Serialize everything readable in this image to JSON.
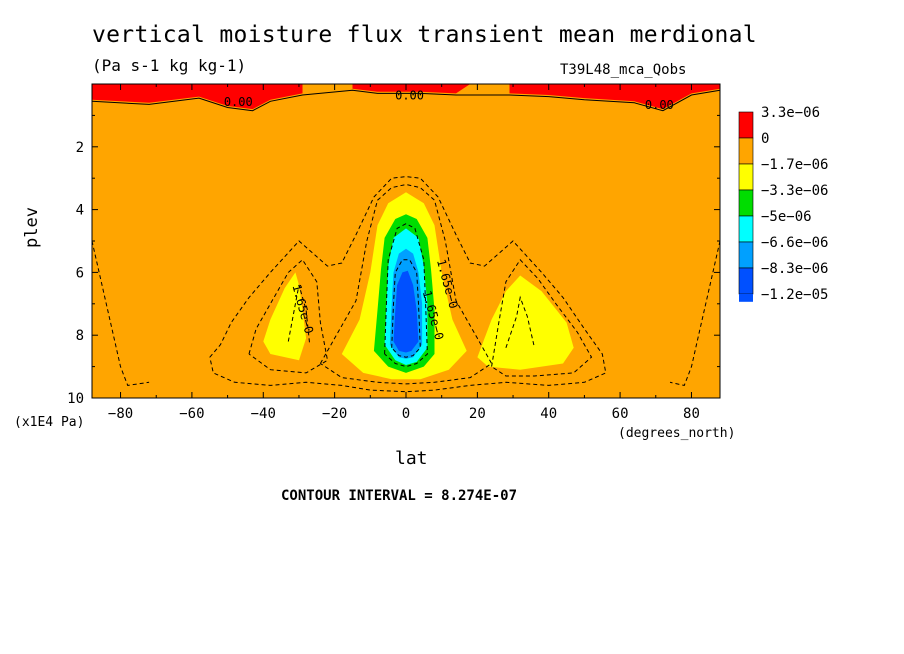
{
  "chart_data": {
    "type": "contour",
    "title": "vertical moisture flux transient mean merdional",
    "units": "(Pa s-1 kg kg-1)",
    "source_label": "T39L48_mca_Qobs",
    "xlabel": "lat",
    "xunits": "(degrees_north)",
    "ylabel": "plev",
    "ymultiplier": "(x1E4 Pa)",
    "xlim": [
      -88,
      88
    ],
    "ylim": [
      10,
      0
    ],
    "x_ticks": [
      -80,
      -60,
      -40,
      -20,
      0,
      20,
      40,
      60,
      80
    ],
    "x_tick_labels": [
      "−80",
      "−60",
      "−40",
      "−20",
      "0",
      "20",
      "40",
      "60",
      "80"
    ],
    "y_ticks": [
      2,
      4,
      6,
      8,
      10
    ],
    "y_tick_labels": [
      "2",
      "4",
      "6",
      "8",
      "10"
    ],
    "contour_interval": "CONTOUR INTERVAL = 8.274E-07",
    "legend_placement": "right",
    "legend": [
      {
        "label": "3.3e−06",
        "color": "#ff0000"
      },
      {
        "label": "0",
        "color": "#ffa500"
      },
      {
        "label": "−1.7e−06",
        "color": "#ffff00"
      },
      {
        "label": "−3.3e−06",
        "color": "#00dd00"
      },
      {
        "label": "−5e−06",
        "color": "#00ffff"
      },
      {
        "label": "−6.6e−06",
        "color": "#00a0ff"
      },
      {
        "label": "−8.3e−06",
        "color": "#0050ff"
      },
      {
        "label": "−1.2e−05",
        "color": ""
      }
    ],
    "contour_labels": [
      {
        "text": "0.00",
        "x": -47,
        "y": 0.7
      },
      {
        "text": "0.00",
        "x": 1,
        "y": 0.5
      },
      {
        "text": "0.00",
        "x": 71,
        "y": 0.8
      },
      {
        "text": "1.65e−0",
        "x": 10.5,
        "y": 6.4
      },
      {
        "text": "1.65e−0",
        "x": 6.5,
        "y": 7.4
      },
      {
        "text": "1.65e−0",
        "x": -30,
        "y": 7.2
      }
    ],
    "regions": [
      {
        "name": "positive-band-top-left",
        "color": "#ff0000",
        "value": 3.3e-06,
        "points": [
          [
            -88,
            0
          ],
          [
            -29,
            0
          ],
          [
            -29,
            0.3
          ],
          [
            -38,
            0.5
          ],
          [
            -43,
            0.8
          ],
          [
            -50,
            0.7
          ],
          [
            -58,
            0.4
          ],
          [
            -72,
            0.6
          ],
          [
            -88,
            0.5
          ]
        ]
      },
      {
        "name": "positive-band-top-center",
        "color": "#ff0000",
        "value": 3.3e-06,
        "points": [
          [
            -15,
            0
          ],
          [
            18,
            0
          ],
          [
            14,
            0.3
          ],
          [
            4,
            0.25
          ],
          [
            -8,
            0.25
          ],
          [
            -15,
            0.15
          ]
        ]
      },
      {
        "name": "positive-band-top-right",
        "color": "#ff0000",
        "value": 3.3e-06,
        "points": [
          [
            29,
            0
          ],
          [
            88,
            0
          ],
          [
            88,
            0.15
          ],
          [
            80,
            0.3
          ],
          [
            72,
            0.8
          ],
          [
            64,
            0.55
          ],
          [
            50,
            0.45
          ],
          [
            40,
            0.35
          ],
          [
            29,
            0.3
          ]
        ]
      },
      {
        "name": "yellow-region-south",
        "color": "#ffff00",
        "value": -1.7e-06,
        "points": [
          [
            -40,
            8.2
          ],
          [
            -38,
            7.5
          ],
          [
            -34,
            6.5
          ],
          [
            -31,
            6.0
          ],
          [
            -30,
            6.4
          ],
          [
            -29,
            7.2
          ],
          [
            -28,
            8.1
          ],
          [
            -30,
            8.8
          ],
          [
            -38,
            8.6
          ]
        ]
      },
      {
        "name": "yellow-region-north",
        "color": "#ffff00",
        "value": -1.7e-06,
        "points": [
          [
            20,
            8.7
          ],
          [
            24,
            7.5
          ],
          [
            28,
            6.6
          ],
          [
            32,
            6.1
          ],
          [
            38,
            6.6
          ],
          [
            45,
            7.6
          ],
          [
            47,
            8.4
          ],
          [
            44,
            8.9
          ],
          [
            32,
            9.1
          ],
          [
            23,
            9.0
          ]
        ]
      },
      {
        "name": "yellow-region-equator",
        "color": "#ffff00",
        "value": -1.7e-06,
        "points": [
          [
            -18,
            8.6
          ],
          [
            -13,
            7.5
          ],
          [
            -10,
            6.0
          ],
          [
            -8,
            4.5
          ],
          [
            -5,
            3.8
          ],
          [
            0,
            3.45
          ],
          [
            5,
            3.8
          ],
          [
            8,
            4.5
          ],
          [
            10,
            6.0
          ],
          [
            13,
            7.5
          ],
          [
            17,
            8.5
          ],
          [
            12,
            9.1
          ],
          [
            4,
            9.4
          ],
          [
            -4,
            9.4
          ],
          [
            -12,
            9.2
          ]
        ]
      },
      {
        "name": "green-region-equator",
        "color": "#00dd00",
        "value": -3.3e-06,
        "points": [
          [
            -9,
            8.5
          ],
          [
            -8,
            7.2
          ],
          [
            -7,
            5.9
          ],
          [
            -6,
            4.9
          ],
          [
            -3,
            4.3
          ],
          [
            0,
            4.15
          ],
          [
            3,
            4.3
          ],
          [
            6,
            4.9
          ],
          [
            7,
            5.9
          ],
          [
            8,
            7.2
          ],
          [
            8,
            8.6
          ],
          [
            5,
            9.0
          ],
          [
            0,
            9.2
          ],
          [
            -5,
            9.0
          ]
        ]
      },
      {
        "name": "cyan-region-equator",
        "color": "#00ffff",
        "value": -5e-06,
        "points": [
          [
            -6,
            8.3
          ],
          [
            -5.5,
            7.0
          ],
          [
            -5,
            5.8
          ],
          [
            -3.5,
            4.9
          ],
          [
            0,
            4.6
          ],
          [
            3.5,
            4.9
          ],
          [
            5,
            5.8
          ],
          [
            6,
            7.0
          ],
          [
            6,
            8.4
          ],
          [
            3,
            8.85
          ],
          [
            0,
            8.95
          ],
          [
            -3,
            8.8
          ]
        ]
      },
      {
        "name": "lightblue-region-equator",
        "color": "#00a0ff",
        "value": -6.6e-06,
        "points": [
          [
            -4.5,
            8.3
          ],
          [
            -4,
            7.0
          ],
          [
            -3.5,
            6.0
          ],
          [
            -2,
            5.4
          ],
          [
            0,
            5.25
          ],
          [
            2,
            5.4
          ],
          [
            3.5,
            6.0
          ],
          [
            4.5,
            7.0
          ],
          [
            4.5,
            8.3
          ],
          [
            2,
            8.7
          ],
          [
            0,
            8.75
          ],
          [
            -2,
            8.7
          ]
        ]
      },
      {
        "name": "blue-region-equator",
        "color": "#0050ff",
        "value": -8.3e-06,
        "points": [
          [
            -3.5,
            8.2
          ],
          [
            -3,
            7.2
          ],
          [
            -2.5,
            6.4
          ],
          [
            -1,
            6.0
          ],
          [
            0.5,
            5.95
          ],
          [
            2,
            6.4
          ],
          [
            3,
            7.2
          ],
          [
            3.5,
            8.2
          ],
          [
            1.5,
            8.5
          ],
          [
            0,
            8.55
          ],
          [
            -2,
            8.5
          ]
        ]
      }
    ],
    "contour_lines": [
      {
        "style": "solid",
        "points": [
          [
            -88,
            0.55
          ],
          [
            -72,
            0.65
          ],
          [
            -58,
            0.45
          ],
          [
            -50,
            0.75
          ],
          [
            -43,
            0.85
          ],
          [
            -38,
            0.55
          ],
          [
            -29,
            0.35
          ],
          [
            -15,
            0.2
          ],
          [
            -8,
            0.3
          ],
          [
            4,
            0.3
          ],
          [
            14,
            0.35
          ],
          [
            29,
            0.35
          ],
          [
            40,
            0.4
          ],
          [
            50,
            0.5
          ],
          [
            64,
            0.6
          ],
          [
            72,
            0.85
          ],
          [
            80,
            0.35
          ],
          [
            88,
            0.2
          ]
        ]
      },
      {
        "style": "dashed",
        "points": [
          [
            -88,
            5.0
          ],
          [
            -82,
            8.0
          ],
          [
            -80,
            9.0
          ],
          [
            -78,
            9.6
          ],
          [
            -72,
            9.5
          ]
        ]
      },
      {
        "style": "dashed",
        "points": [
          [
            88,
            5.0
          ],
          [
            82,
            8.0
          ],
          [
            80,
            9.0
          ],
          [
            78,
            9.6
          ],
          [
            74,
            9.5
          ]
        ]
      },
      {
        "style": "dashed",
        "points": [
          [
            -55,
            8.7
          ],
          [
            -52,
            8.3
          ],
          [
            -49,
            7.6
          ],
          [
            -44,
            6.8
          ],
          [
            -38,
            6.0
          ],
          [
            -30,
            5.0
          ],
          [
            -22,
            5.8
          ],
          [
            -18,
            5.7
          ],
          [
            -14,
            4.8
          ],
          [
            -9,
            3.6
          ],
          [
            -4,
            3.0
          ],
          [
            0,
            2.95
          ],
          [
            4,
            3.0
          ],
          [
            9,
            3.6
          ],
          [
            14,
            4.8
          ],
          [
            18,
            5.7
          ],
          [
            22,
            5.8
          ],
          [
            30,
            5.0
          ],
          [
            38,
            6.0
          ],
          [
            44,
            6.8
          ],
          [
            50,
            7.8
          ],
          [
            55,
            8.6
          ],
          [
            56,
            9.2
          ],
          [
            50,
            9.5
          ],
          [
            40,
            9.6
          ],
          [
            28,
            9.5
          ],
          [
            18,
            9.6
          ],
          [
            8,
            9.75
          ],
          [
            0,
            9.8
          ],
          [
            -10,
            9.75
          ],
          [
            -18,
            9.6
          ],
          [
            -28,
            9.5
          ],
          [
            -38,
            9.6
          ],
          [
            -48,
            9.5
          ],
          [
            -54,
            9.2
          ],
          [
            -55,
            8.7
          ]
        ]
      },
      {
        "style": "dashed",
        "points": [
          [
            -44,
            8.6
          ],
          [
            -42,
            7.8
          ],
          [
            -38,
            7.0
          ],
          [
            -33,
            6.0
          ],
          [
            -29,
            5.6
          ],
          [
            -25,
            6.3
          ],
          [
            -24,
            7.6
          ],
          [
            -22,
            8.8
          ],
          [
            -28,
            9.2
          ],
          [
            -38,
            9.1
          ],
          [
            -44,
            8.6
          ]
        ]
      },
      {
        "style": "dashed",
        "points": [
          [
            -24,
            8.9
          ],
          [
            -20,
            8.1
          ],
          [
            -14,
            6.9
          ],
          [
            -11,
            5.0
          ],
          [
            -8,
            3.7
          ],
          [
            -4,
            3.3
          ],
          [
            0,
            3.2
          ],
          [
            4,
            3.3
          ],
          [
            8,
            3.7
          ],
          [
            11,
            5.0
          ],
          [
            14,
            6.9
          ],
          [
            20,
            8.1
          ],
          [
            24,
            8.9
          ],
          [
            18,
            9.35
          ],
          [
            8,
            9.5
          ],
          [
            0,
            9.55
          ],
          [
            -8,
            9.5
          ],
          [
            -18,
            9.35
          ],
          [
            -24,
            8.9
          ]
        ]
      },
      {
        "style": "dashed",
        "points": [
          [
            24,
            9.0
          ],
          [
            26,
            7.6
          ],
          [
            28,
            6.3
          ],
          [
            32,
            5.6
          ],
          [
            37,
            6.2
          ],
          [
            42,
            7.0
          ],
          [
            48,
            7.9
          ],
          [
            52,
            8.7
          ],
          [
            47,
            9.2
          ],
          [
            36,
            9.3
          ],
          [
            28,
            9.3
          ],
          [
            24,
            9.0
          ]
        ]
      },
      {
        "style": "dashed",
        "points": [
          [
            -33,
            8.2
          ],
          [
            -31,
            7.0
          ],
          [
            -30,
            6.4
          ],
          [
            -28,
            7.2
          ],
          [
            -27,
            8.3
          ]
        ]
      },
      {
        "style": "dashed",
        "points": [
          [
            28,
            8.4
          ],
          [
            31,
            7.4
          ],
          [
            32,
            6.8
          ],
          [
            34,
            7.4
          ],
          [
            36,
            8.4
          ]
        ]
      },
      {
        "style": "dashed",
        "points": [
          [
            -6,
            8.6
          ],
          [
            -5.5,
            7.0
          ],
          [
            -5,
            5.6
          ],
          [
            -2.5,
            4.6
          ],
          [
            0,
            4.45
          ],
          [
            2.5,
            4.6
          ],
          [
            5,
            5.6
          ],
          [
            5.5,
            7.0
          ],
          [
            6,
            8.6
          ],
          [
            3,
            8.9
          ],
          [
            0,
            9.0
          ],
          [
            -3,
            8.9
          ],
          [
            -6,
            8.6
          ]
        ]
      },
      {
        "style": "dashed",
        "points": [
          [
            -4,
            8.4
          ],
          [
            -3.5,
            7.0
          ],
          [
            -3,
            6.0
          ],
          [
            -1,
            5.6
          ],
          [
            1,
            5.6
          ],
          [
            3,
            6.0
          ],
          [
            3.5,
            7.0
          ],
          [
            4,
            8.4
          ],
          [
            2,
            8.65
          ],
          [
            0,
            8.7
          ],
          [
            -2,
            8.65
          ],
          [
            -4,
            8.4
          ]
        ]
      }
    ]
  },
  "colors": {
    "frame": "#000000",
    "background_fill": "#ffa500",
    "below_lowest": "#0050ff"
  }
}
